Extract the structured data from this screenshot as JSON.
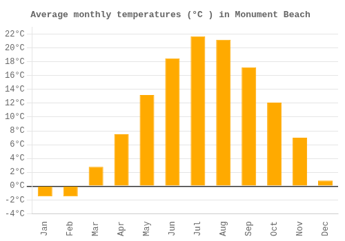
{
  "chart_data": {
    "type": "bar",
    "title": "Average monthly temperatures (°C ) in Monument Beach",
    "categories": [
      "Jan",
      "Feb",
      "Mar",
      "Apr",
      "May",
      "Jun",
      "Jul",
      "Aug",
      "Sep",
      "Oct",
      "Nov",
      "Dec"
    ],
    "values": [
      -1.5,
      -1.5,
      2.8,
      7.5,
      13.2,
      18.5,
      21.7,
      21.2,
      17.2,
      12.1,
      7.0,
      0.8
    ],
    "color": "#FFAA00",
    "ylim": [
      -4,
      23
    ],
    "yticks": [
      {
        "value": -4,
        "label": "-4°C"
      },
      {
        "value": -2,
        "label": "-2°C"
      },
      {
        "value": 0,
        "label": "0°C"
      },
      {
        "value": 2,
        "label": "2°C"
      },
      {
        "value": 4,
        "label": "4°C"
      },
      {
        "value": 6,
        "label": "6°C"
      },
      {
        "value": 8,
        "label": "8°C"
      },
      {
        "value": 10,
        "label": "10°C"
      },
      {
        "value": 12,
        "label": "12°C"
      },
      {
        "value": 14,
        "label": "14°C"
      },
      {
        "value": 16,
        "label": "16°C"
      },
      {
        "value": 18,
        "label": "18°C"
      },
      {
        "value": 20,
        "label": "20°C"
      },
      {
        "value": 22,
        "label": "22°C"
      }
    ],
    "grid": true
  }
}
